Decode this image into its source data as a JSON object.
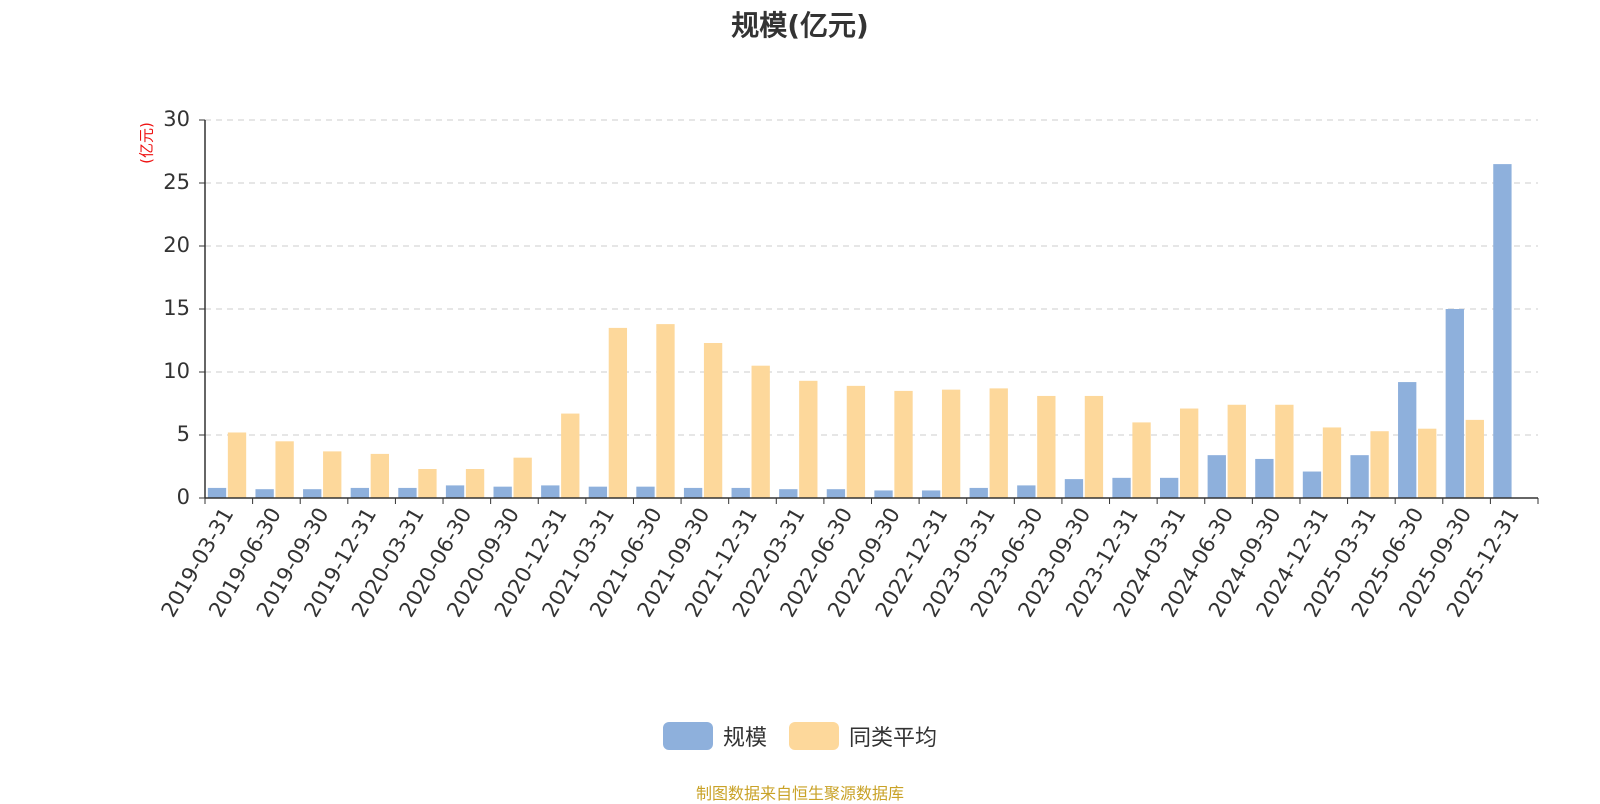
{
  "chart_data": {
    "type": "bar",
    "title": "规模(亿元)",
    "ylabel": "(亿元)",
    "xlabel": "",
    "ylim": [
      0,
      30
    ],
    "yticks": [
      0,
      5,
      10,
      15,
      20,
      25,
      30
    ],
    "grid": true,
    "legend_position": "bottom-center",
    "categories": [
      "2019-03-31",
      "2019-06-30",
      "2019-09-30",
      "2019-12-31",
      "2020-03-31",
      "2020-06-30",
      "2020-09-30",
      "2020-12-31",
      "2021-03-31",
      "2021-06-30",
      "2021-09-30",
      "2021-12-31",
      "2022-03-31",
      "2022-06-30",
      "2022-09-30",
      "2022-12-31",
      "2023-03-31",
      "2023-06-30",
      "2023-09-30",
      "2023-12-31",
      "2024-03-31",
      "2024-06-30",
      "2024-09-30",
      "2024-12-31",
      "2025-03-31",
      "2025-06-30",
      "2025-09-30",
      "2025-12-31"
    ],
    "series": [
      {
        "name": "规模",
        "color": "#8eb0dc",
        "values": [
          0.8,
          0.7,
          0.7,
          0.8,
          0.8,
          1.0,
          0.9,
          1.0,
          0.9,
          0.9,
          0.8,
          0.8,
          0.7,
          0.7,
          0.6,
          0.6,
          0.8,
          1.0,
          1.5,
          1.6,
          1.6,
          3.4,
          3.1,
          2.1,
          3.4,
          9.2,
          15.0,
          26.5
        ]
      },
      {
        "name": "同类平均",
        "color": "#fdd89b",
        "values": [
          5.2,
          4.5,
          3.7,
          3.5,
          2.3,
          2.3,
          3.2,
          6.7,
          13.5,
          13.8,
          12.3,
          10.5,
          9.3,
          8.9,
          8.5,
          8.6,
          8.7,
          8.1,
          8.1,
          6.0,
          7.1,
          7.4,
          7.4,
          5.6,
          5.3,
          5.5,
          6.2,
          null
        ]
      }
    ]
  },
  "source_note": "制图数据来自恒生聚源数据库"
}
